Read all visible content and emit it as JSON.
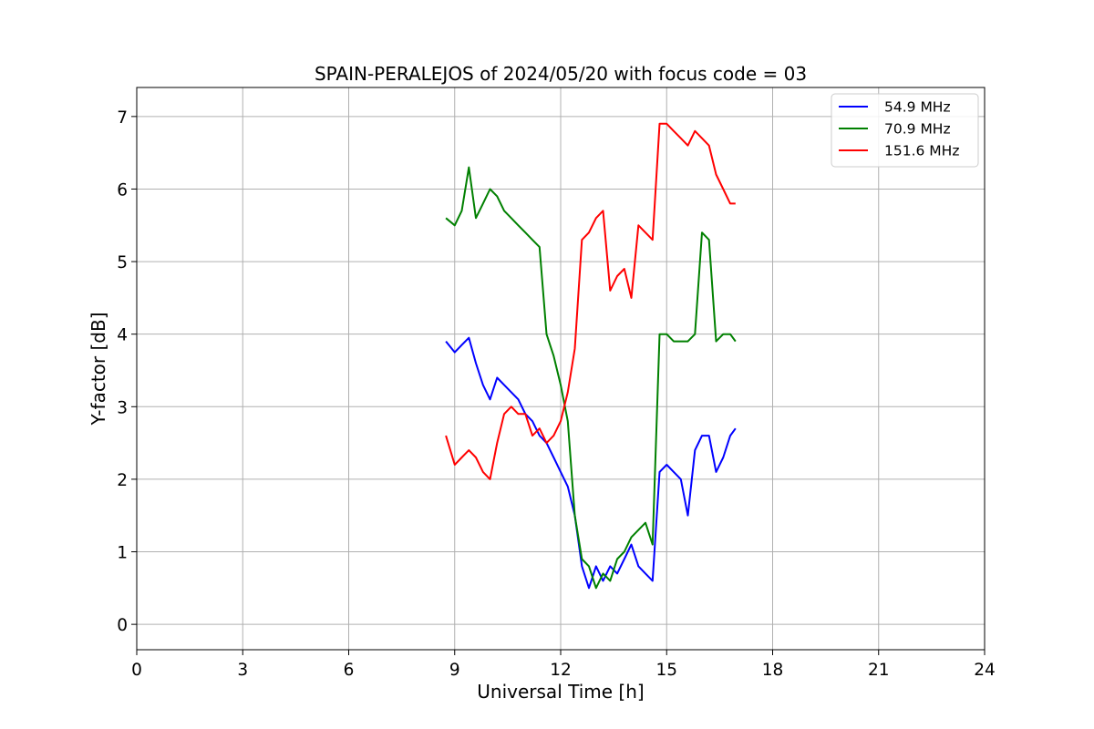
{
  "chart_data": {
    "type": "line",
    "title": "SPAIN-PERALEJOS of 2024/05/20 with focus code = 03",
    "xlabel": "Universal Time [h]",
    "ylabel": "Y-factor [dB]",
    "xlim": [
      0,
      24
    ],
    "ylim": [
      -0.35,
      7.4
    ],
    "xticks": [
      0,
      3,
      6,
      9,
      12,
      15,
      18,
      21,
      24
    ],
    "xtick_labels": [
      "0",
      "3",
      "6",
      "9",
      "12",
      "15",
      "18",
      "21",
      "24"
    ],
    "yticks": [
      0,
      1,
      2,
      3,
      4,
      5,
      6,
      7
    ],
    "ytick_labels": [
      "0",
      "1",
      "2",
      "3",
      "4",
      "5",
      "6",
      "7"
    ],
    "grid": true,
    "legend_position": "top-right",
    "series": [
      {
        "name": " 54.9 MHz",
        "color": "#0000ff",
        "x": [
          8.75,
          9.0,
          9.2,
          9.4,
          9.6,
          9.8,
          10.0,
          10.2,
          10.4,
          10.6,
          10.8,
          11.0,
          11.2,
          11.4,
          11.6,
          11.8,
          12.0,
          12.2,
          12.4,
          12.6,
          12.8,
          13.0,
          13.2,
          13.4,
          13.6,
          13.8,
          14.0,
          14.2,
          14.4,
          14.6,
          14.8,
          15.0,
          15.2,
          15.4,
          15.6,
          15.8,
          16.0,
          16.2,
          16.4,
          16.6,
          16.8,
          16.95
        ],
        "y": [
          3.9,
          3.75,
          3.85,
          3.95,
          3.6,
          3.3,
          3.1,
          3.4,
          3.3,
          3.2,
          3.1,
          2.9,
          2.8,
          2.6,
          2.5,
          2.3,
          2.1,
          1.9,
          1.5,
          0.8,
          0.5,
          0.8,
          0.6,
          0.8,
          0.7,
          0.9,
          1.1,
          0.8,
          0.7,
          0.6,
          2.1,
          2.2,
          2.1,
          2.0,
          1.5,
          2.4,
          2.6,
          2.6,
          2.1,
          2.3,
          2.6,
          2.7
        ]
      },
      {
        "name": " 70.9 MHz",
        "color": "#008000",
        "x": [
          8.75,
          9.0,
          9.2,
          9.4,
          9.6,
          9.8,
          10.0,
          10.2,
          10.4,
          10.6,
          10.8,
          11.0,
          11.2,
          11.4,
          11.6,
          11.8,
          12.0,
          12.2,
          12.4,
          12.6,
          12.8,
          13.0,
          13.2,
          13.4,
          13.6,
          13.8,
          14.0,
          14.2,
          14.4,
          14.6,
          14.8,
          15.0,
          15.2,
          15.4,
          15.6,
          15.8,
          16.0,
          16.2,
          16.4,
          16.6,
          16.8,
          16.95
        ],
        "y": [
          5.6,
          5.5,
          5.7,
          6.3,
          5.6,
          5.8,
          6.0,
          5.9,
          5.7,
          5.6,
          5.5,
          5.4,
          5.3,
          5.2,
          4.0,
          3.7,
          3.3,
          2.8,
          1.5,
          0.9,
          0.8,
          0.5,
          0.7,
          0.6,
          0.9,
          1.0,
          1.2,
          1.3,
          1.4,
          1.1,
          4.0,
          4.0,
          3.9,
          3.9,
          3.9,
          4.0,
          5.4,
          5.3,
          3.9,
          4.0,
          4.0,
          3.9
        ]
      },
      {
        "name": "151.6 MHz",
        "color": "#ff0000",
        "x": [
          8.75,
          9.0,
          9.2,
          9.4,
          9.6,
          9.8,
          10.0,
          10.2,
          10.4,
          10.6,
          10.8,
          11.0,
          11.2,
          11.4,
          11.6,
          11.8,
          12.0,
          12.2,
          12.4,
          12.6,
          12.8,
          13.0,
          13.2,
          13.4,
          13.6,
          13.8,
          14.0,
          14.2,
          14.4,
          14.6,
          14.8,
          15.0,
          15.2,
          15.4,
          15.6,
          15.8,
          16.0,
          16.2,
          16.4,
          16.6,
          16.8,
          16.95
        ],
        "y": [
          2.6,
          2.2,
          2.3,
          2.4,
          2.3,
          2.1,
          2.0,
          2.5,
          2.9,
          3.0,
          2.9,
          2.9,
          2.6,
          2.7,
          2.5,
          2.6,
          2.8,
          3.2,
          3.8,
          5.3,
          5.4,
          5.6,
          5.7,
          4.6,
          4.8,
          4.9,
          4.5,
          5.5,
          5.4,
          5.3,
          6.9,
          6.9,
          6.8,
          6.7,
          6.6,
          6.8,
          6.7,
          6.6,
          6.2,
          6.0,
          5.8,
          5.8
        ]
      }
    ]
  }
}
